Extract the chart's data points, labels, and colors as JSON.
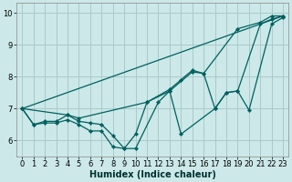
{
  "xlabel": "Humidex (Indice chaleur)",
  "xlim": [
    -0.5,
    23.5
  ],
  "ylim": [
    5.5,
    10.3
  ],
  "yticks": [
    6,
    7,
    8,
    9,
    10
  ],
  "xticks": [
    0,
    1,
    2,
    3,
    4,
    5,
    6,
    7,
    8,
    9,
    10,
    11,
    12,
    13,
    14,
    15,
    16,
    17,
    18,
    19,
    20,
    21,
    22,
    23
  ],
  "bg_color": "#cce8e8",
  "grid_color": "#aacaca",
  "line_color": "#006060",
  "lines": [
    {
      "x": [
        0,
        23
      ],
      "y": [
        7.0,
        9.9
      ],
      "marker": false
    },
    {
      "x": [
        0,
        1,
        2,
        3,
        4,
        5,
        11,
        13,
        14,
        15,
        16,
        19,
        21,
        22,
        23
      ],
      "y": [
        7.0,
        6.5,
        6.6,
        6.6,
        6.8,
        6.7,
        7.2,
        7.6,
        7.9,
        8.2,
        8.1,
        9.5,
        9.7,
        9.9,
        9.9
      ],
      "marker": true
    },
    {
      "x": [
        0,
        1,
        2,
        3,
        4,
        5,
        6,
        7,
        8,
        9,
        10,
        11,
        13,
        14,
        17,
        18,
        19,
        21,
        22,
        23
      ],
      "y": [
        7.0,
        6.5,
        6.55,
        6.55,
        6.65,
        6.5,
        6.3,
        6.3,
        5.8,
        5.75,
        6.2,
        7.2,
        7.55,
        6.2,
        7.0,
        7.5,
        7.55,
        9.65,
        9.8,
        9.9
      ],
      "marker": true
    },
    {
      "x": [
        0,
        4,
        5,
        6,
        7,
        8,
        9,
        10,
        12,
        13,
        15,
        16,
        17,
        18,
        19,
        20,
        22,
        23
      ],
      "y": [
        7.0,
        6.8,
        6.6,
        6.55,
        6.5,
        6.15,
        5.75,
        5.75,
        7.2,
        7.55,
        8.15,
        8.1,
        7.0,
        7.5,
        7.55,
        6.95,
        9.65,
        9.85
      ],
      "marker": true
    }
  ]
}
